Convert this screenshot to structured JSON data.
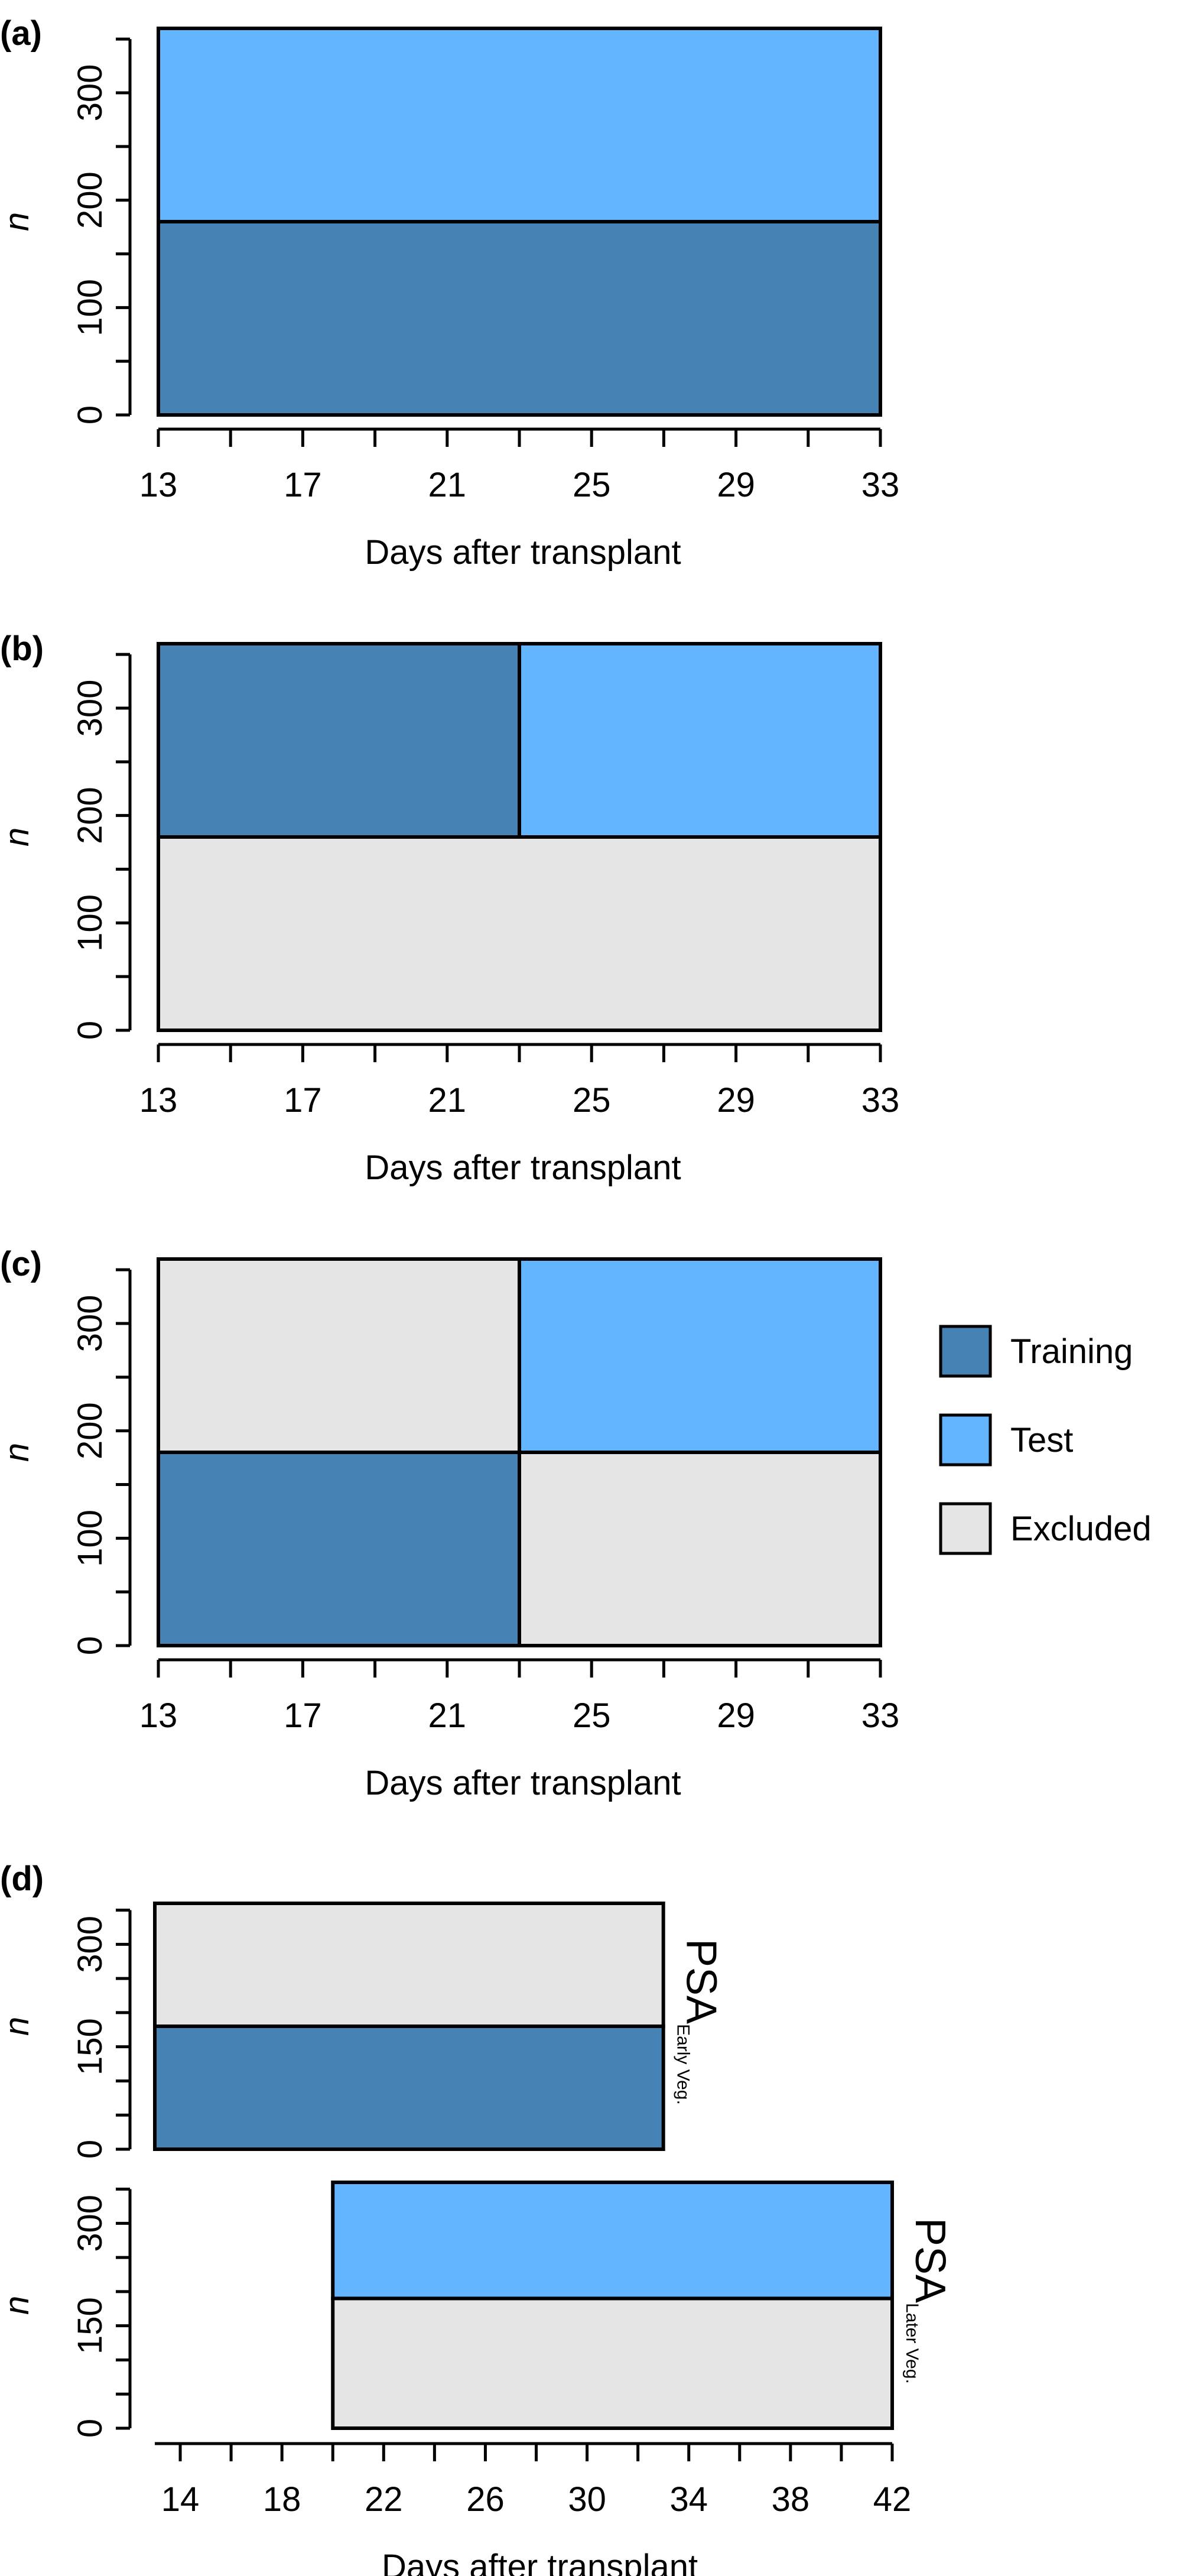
{
  "colors": {
    "training": "#4682b4",
    "test": "#63b5ff",
    "excluded": "#e5e5e5",
    "stroke": "#000000"
  },
  "legend": {
    "placement": "right of panel (c)",
    "items": [
      {
        "key": "training",
        "label": "Training"
      },
      {
        "key": "test",
        "label": "Test"
      },
      {
        "key": "excluded",
        "label": "Excluded"
      }
    ]
  },
  "chart_data": [
    {
      "panel": "(a)",
      "type": "bar",
      "xlabel": "Days after transplant",
      "ylabel": "n",
      "xlim": [
        13,
        33
      ],
      "ylim": [
        0,
        360
      ],
      "xticks": [
        13,
        15,
        17,
        19,
        21,
        23,
        25,
        27,
        29,
        31,
        33
      ],
      "xtick_labels": [
        "13",
        "17",
        "21",
        "25",
        "29",
        "33"
      ],
      "yticks": [
        0,
        50,
        100,
        150,
        200,
        250,
        300,
        350
      ],
      "ytick_labels": [
        "0",
        "100",
        "200",
        "300"
      ],
      "blocks": [
        {
          "category": "training",
          "x0": 13,
          "x1": 33,
          "y0": 0,
          "y1": 180
        },
        {
          "category": "test",
          "x0": 13,
          "x1": 33,
          "y0": 180,
          "y1": 360
        }
      ]
    },
    {
      "panel": "(b)",
      "type": "bar",
      "xlabel": "Days after transplant",
      "ylabel": "n",
      "xlim": [
        13,
        33
      ],
      "ylim": [
        0,
        360
      ],
      "xticks": [
        13,
        15,
        17,
        19,
        21,
        23,
        25,
        27,
        29,
        31,
        33
      ],
      "xtick_labels": [
        "13",
        "17",
        "21",
        "25",
        "29",
        "33"
      ],
      "yticks": [
        0,
        50,
        100,
        150,
        200,
        250,
        300,
        350
      ],
      "ytick_labels": [
        "0",
        "100",
        "200",
        "300"
      ],
      "blocks": [
        {
          "category": "excluded",
          "x0": 13,
          "x1": 33,
          "y0": 0,
          "y1": 180
        },
        {
          "category": "training",
          "x0": 13,
          "x1": 23,
          "y0": 180,
          "y1": 360
        },
        {
          "category": "test",
          "x0": 23,
          "x1": 33,
          "y0": 180,
          "y1": 360
        }
      ]
    },
    {
      "panel": "(c)",
      "type": "bar",
      "xlabel": "Days after transplant",
      "ylabel": "n",
      "xlim": [
        13,
        33
      ],
      "ylim": [
        0,
        360
      ],
      "xticks": [
        13,
        15,
        17,
        19,
        21,
        23,
        25,
        27,
        29,
        31,
        33
      ],
      "xtick_labels": [
        "13",
        "17",
        "21",
        "25",
        "29",
        "33"
      ],
      "yticks": [
        0,
        50,
        100,
        150,
        200,
        250,
        300,
        350
      ],
      "ytick_labels": [
        "0",
        "100",
        "200",
        "300"
      ],
      "blocks": [
        {
          "category": "training",
          "x0": 13,
          "x1": 23,
          "y0": 0,
          "y1": 180
        },
        {
          "category": "excluded",
          "x0": 23,
          "x1": 33,
          "y0": 0,
          "y1": 180
        },
        {
          "category": "excluded",
          "x0": 13,
          "x1": 23,
          "y0": 180,
          "y1": 360
        },
        {
          "category": "test",
          "x0": 23,
          "x1": 33,
          "y0": 180,
          "y1": 360
        }
      ]
    },
    {
      "panel": "(d)",
      "type": "bar",
      "xlabel": "Days after transplant",
      "ylabel": "n",
      "xlim": [
        13,
        42
      ],
      "ylim": [
        0,
        360
      ],
      "xticks": [
        14,
        16,
        18,
        20,
        22,
        24,
        26,
        28,
        30,
        32,
        34,
        36,
        38,
        40,
        42
      ],
      "xtick_labels": [
        "14",
        "18",
        "22",
        "26",
        "30",
        "34",
        "38",
        "42"
      ],
      "yticks": [
        0,
        50,
        100,
        150,
        200,
        250,
        300,
        350
      ],
      "ytick_labels": [
        "0",
        "150",
        "300"
      ],
      "subpanels": [
        {
          "label_main": "PSA",
          "label_sub": "Early Veg.",
          "blocks": [
            {
              "category": "training",
              "x0": 13,
              "x1": 33,
              "y0": 0,
              "y1": 180
            },
            {
              "category": "excluded",
              "x0": 13,
              "x1": 33,
              "y0": 180,
              "y1": 360
            }
          ]
        },
        {
          "label_main": "PSA",
          "label_sub": "Later Veg.",
          "blocks": [
            {
              "category": "excluded",
              "x0": 20,
              "x1": 42,
              "y0": 0,
              "y1": 190
            },
            {
              "category": "test",
              "x0": 20,
              "x1": 42,
              "y0": 190,
              "y1": 360
            }
          ]
        }
      ]
    }
  ]
}
